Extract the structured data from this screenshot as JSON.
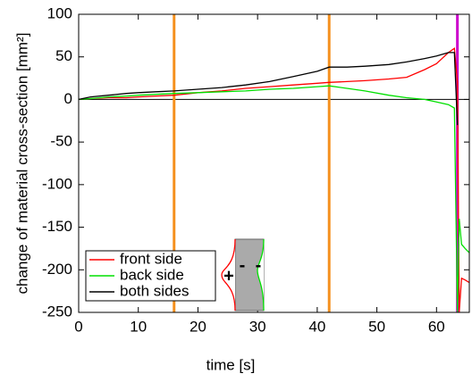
{
  "chart_data": {
    "type": "line",
    "xlabel": "time [s]",
    "ylabel": "change of material cross-section [mm²]",
    "xlim": [
      0,
      65.5
    ],
    "ylim": [
      -250,
      100
    ],
    "xticks": [
      0,
      10,
      20,
      30,
      40,
      50,
      60
    ],
    "yticks": [
      -250,
      -200,
      -150,
      -100,
      -50,
      0,
      50,
      100
    ],
    "x": [
      0,
      2,
      5,
      8,
      10,
      13,
      16,
      20,
      24,
      28,
      32,
      36,
      40,
      42,
      45,
      48,
      52,
      55,
      58,
      60,
      62,
      63,
      63.5,
      63.8,
      64.2,
      64.8,
      65.5
    ],
    "series": [
      {
        "name": "front side",
        "color": "#ff0000",
        "values": [
          0,
          1,
          2,
          2,
          3,
          4,
          5,
          8,
          10,
          13,
          15,
          17,
          19,
          20,
          21,
          22,
          24,
          26,
          35,
          42,
          55,
          60,
          20,
          -250,
          -210,
          -212,
          -215
        ]
      },
      {
        "name": "back side",
        "color": "#00e000",
        "values": [
          0,
          1,
          3,
          4,
          5,
          6,
          7,
          8,
          9,
          10,
          12,
          13,
          15,
          16,
          13,
          10,
          5,
          2,
          0,
          -3,
          -6,
          -10,
          -250,
          -140,
          -170,
          -175,
          -180
        ]
      },
      {
        "name": "both sides",
        "color": "#000000",
        "values": [
          0,
          3,
          5,
          7,
          8,
          9,
          10,
          12,
          14,
          17,
          21,
          27,
          33,
          38,
          38,
          39,
          41,
          44,
          48,
          51,
          55,
          55,
          -30,
          null,
          null,
          null,
          null
        ]
      }
    ],
    "vlines": [
      {
        "x": 16,
        "color": "#f5901e"
      },
      {
        "x": 42,
        "color": "#f5901e"
      },
      {
        "x": 63.5,
        "color": "#cc00cc"
      }
    ],
    "hline": 0,
    "legend": "lower left",
    "inset_labels": [
      "+",
      "-",
      "-"
    ]
  }
}
